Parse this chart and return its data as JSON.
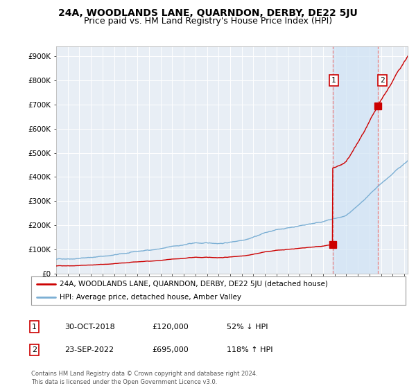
{
  "title": "24A, WOODLANDS LANE, QUARNDON, DERBY, DE22 5JU",
  "subtitle": "Price paid vs. HM Land Registry's House Price Index (HPI)",
  "ylabel_ticks": [
    "£0",
    "£100K",
    "£200K",
    "£300K",
    "£400K",
    "£500K",
    "£600K",
    "£700K",
    "£800K",
    "£900K"
  ],
  "ytick_values": [
    0,
    100000,
    200000,
    300000,
    400000,
    500000,
    600000,
    700000,
    800000,
    900000
  ],
  "ylim": [
    0,
    940000
  ],
  "xlim_start": 1995.3,
  "xlim_end": 2025.3,
  "hpi_color": "#7bafd4",
  "property_color": "#cc0000",
  "sale1_x": 2018.83,
  "sale1_y": 120000,
  "sale2_x": 2022.72,
  "sale2_y": 695000,
  "vline_color": "#e88080",
  "shade_color": "#d0e4f5",
  "legend_property": "24A, WOODLANDS LANE, QUARNDON, DERBY, DE22 5JU (detached house)",
  "legend_hpi": "HPI: Average price, detached house, Amber Valley",
  "table_row1": [
    "1",
    "30-OCT-2018",
    "£120,000",
    "52% ↓ HPI"
  ],
  "table_row2": [
    "2",
    "23-SEP-2022",
    "£695,000",
    "118% ↑ HPI"
  ],
  "footer": "Contains HM Land Registry data © Crown copyright and database right 2024.\nThis data is licensed under the Open Government Licence v3.0.",
  "bg_color": "#ffffff",
  "plot_bg_color": "#e8eef5",
  "grid_color": "#ffffff",
  "title_fontsize": 10,
  "subtitle_fontsize": 9
}
